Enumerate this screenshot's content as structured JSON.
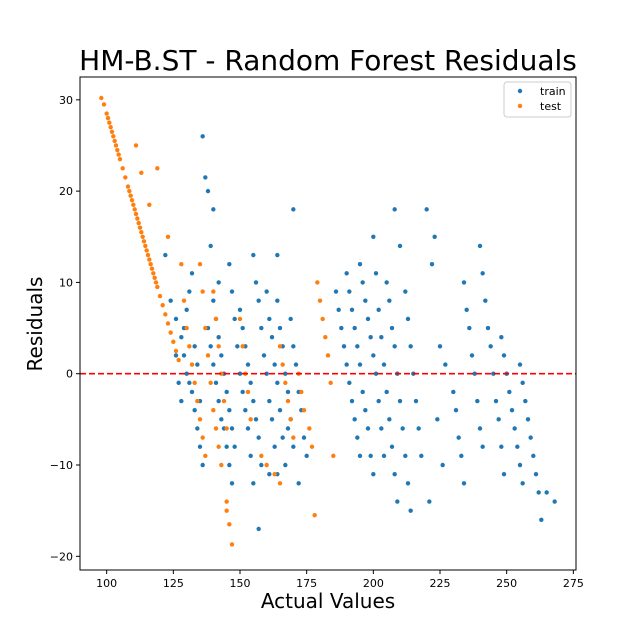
{
  "chart_data": {
    "type": "scatter",
    "title": "HM-B.ST - Random Forest Residuals",
    "xlabel": "Actual Values",
    "ylabel": "Residuals",
    "xlim": [
      90,
      276
    ],
    "ylim": [
      -21.5,
      32.5
    ],
    "xticks": [
      100,
      125,
      150,
      175,
      200,
      225,
      250,
      275
    ],
    "yticks": [
      -20,
      -10,
      0,
      10,
      20,
      30
    ],
    "grid": false,
    "legend_position": "top-right",
    "reference_line": {
      "y": 0,
      "color": "#ff0000",
      "style": "dashed"
    },
    "series": [
      {
        "name": "train",
        "color": "#1f77b4",
        "points": [
          [
            122,
            13
          ],
          [
            124,
            8
          ],
          [
            126,
            6
          ],
          [
            128,
            4
          ],
          [
            129,
            2
          ],
          [
            130,
            0
          ],
          [
            131,
            -1
          ],
          [
            132,
            -2
          ],
          [
            133,
            -4
          ],
          [
            134,
            -6
          ],
          [
            135,
            -8
          ],
          [
            136,
            -10
          ],
          [
            126,
            2
          ],
          [
            127,
            -1
          ],
          [
            128,
            -3
          ],
          [
            129,
            5
          ],
          [
            130,
            7
          ],
          [
            131,
            9
          ],
          [
            132,
            11
          ],
          [
            133,
            3
          ],
          [
            134,
            1
          ],
          [
            135,
            -3
          ],
          [
            138,
            5
          ],
          [
            139,
            3
          ],
          [
            140,
            1
          ],
          [
            141,
            -1
          ],
          [
            142,
            -3
          ],
          [
            143,
            -5
          ],
          [
            144,
            -6
          ],
          [
            145,
            -8
          ],
          [
            146,
            -10
          ],
          [
            147,
            -12
          ],
          [
            140,
            8
          ],
          [
            141,
            6
          ],
          [
            142,
            4
          ],
          [
            143,
            2
          ],
          [
            144,
            0
          ],
          [
            145,
            -2
          ],
          [
            146,
            -4
          ],
          [
            147,
            -6
          ],
          [
            148,
            -8
          ],
          [
            146,
            12
          ],
          [
            147,
            9
          ],
          [
            148,
            6
          ],
          [
            149,
            3
          ],
          [
            150,
            0
          ],
          [
            151,
            -2
          ],
          [
            152,
            -4
          ],
          [
            153,
            -6
          ],
          [
            154,
            -9
          ],
          [
            155,
            -12
          ],
          [
            150,
            7
          ],
          [
            151,
            5
          ],
          [
            152,
            3
          ],
          [
            153,
            1
          ],
          [
            154,
            -1
          ],
          [
            155,
            -3
          ],
          [
            156,
            -5
          ],
          [
            157,
            -7
          ],
          [
            158,
            -10
          ],
          [
            155,
            13
          ],
          [
            156,
            10
          ],
          [
            157,
            8
          ],
          [
            158,
            5
          ],
          [
            159,
            2
          ],
          [
            160,
            0
          ],
          [
            161,
            -3
          ],
          [
            162,
            -5
          ],
          [
            163,
            -8
          ],
          [
            164,
            -11
          ],
          [
            160,
            9
          ],
          [
            161,
            6
          ],
          [
            162,
            4
          ],
          [
            163,
            1
          ],
          [
            164,
            -1
          ],
          [
            165,
            -4
          ],
          [
            166,
            -7
          ],
          [
            167,
            -10
          ],
          [
            164,
            8
          ],
          [
            165,
            5
          ],
          [
            166,
            3
          ],
          [
            167,
            0
          ],
          [
            168,
            -2
          ],
          [
            169,
            -5
          ],
          [
            170,
            -8
          ],
          [
            169,
            6
          ],
          [
            170,
            3
          ],
          [
            171,
            1
          ],
          [
            172,
            -2
          ],
          [
            173,
            -4
          ],
          [
            174,
            -7
          ],
          [
            175,
            -9
          ],
          [
            136,
            26
          ],
          [
            137,
            21.5
          ],
          [
            138,
            20
          ],
          [
            140,
            18
          ],
          [
            139,
            14
          ],
          [
            142,
            10
          ],
          [
            157,
            -17
          ],
          [
            161,
            -11
          ],
          [
            170,
            18
          ],
          [
            164,
            13
          ],
          [
            168,
            -6
          ],
          [
            172,
            -12
          ],
          [
            186,
            9
          ],
          [
            187,
            7
          ],
          [
            188,
            5
          ],
          [
            189,
            3
          ],
          [
            190,
            1
          ],
          [
            191,
            -1
          ],
          [
            192,
            -3
          ],
          [
            193,
            -5
          ],
          [
            194,
            -7
          ],
          [
            195,
            -9
          ],
          [
            190,
            11
          ],
          [
            191,
            9
          ],
          [
            192,
            7
          ],
          [
            193,
            5
          ],
          [
            194,
            3
          ],
          [
            195,
            1
          ],
          [
            196,
            -2
          ],
          [
            197,
            -4
          ],
          [
            198,
            -6
          ],
          [
            199,
            -9
          ],
          [
            200,
            -11
          ],
          [
            195,
            12
          ],
          [
            196,
            10
          ],
          [
            197,
            8
          ],
          [
            198,
            6
          ],
          [
            199,
            4
          ],
          [
            200,
            2
          ],
          [
            201,
            0
          ],
          [
            202,
            -3
          ],
          [
            203,
            -6
          ],
          [
            204,
            -9
          ],
          [
            200,
            15
          ],
          [
            201,
            11
          ],
          [
            202,
            7
          ],
          [
            203,
            4
          ],
          [
            204,
            1
          ],
          [
            205,
            -2
          ],
          [
            206,
            -5
          ],
          [
            207,
            -8
          ],
          [
            208,
            -11
          ],
          [
            209,
            -14
          ],
          [
            205,
            10
          ],
          [
            206,
            8
          ],
          [
            207,
            5
          ],
          [
            208,
            3
          ],
          [
            209,
            0
          ],
          [
            210,
            -3
          ],
          [
            211,
            -6
          ],
          [
            212,
            -9
          ],
          [
            213,
            -12
          ],
          [
            214,
            -15
          ],
          [
            208,
            18
          ],
          [
            210,
            14
          ],
          [
            212,
            9
          ],
          [
            213,
            6
          ],
          [
            214,
            3
          ],
          [
            215,
            0
          ],
          [
            216,
            -3
          ],
          [
            217,
            -6
          ],
          [
            218,
            -9
          ],
          [
            220,
            18
          ],
          [
            221,
            -14
          ],
          [
            222,
            12
          ],
          [
            223,
            15
          ],
          [
            224,
            -5
          ],
          [
            225,
            3
          ],
          [
            226,
            -10
          ],
          [
            227,
            1
          ],
          [
            230,
            -2
          ],
          [
            231,
            -4
          ],
          [
            232,
            -7
          ],
          [
            233,
            -9
          ],
          [
            234,
            -12
          ],
          [
            234,
            10
          ],
          [
            235,
            7
          ],
          [
            236,
            5
          ],
          [
            237,
            2
          ],
          [
            238,
            0
          ],
          [
            239,
            -3
          ],
          [
            240,
            -6
          ],
          [
            241,
            -8
          ],
          [
            240,
            14
          ],
          [
            241,
            11
          ],
          [
            242,
            8
          ],
          [
            243,
            5
          ],
          [
            244,
            3
          ],
          [
            245,
            0
          ],
          [
            246,
            -3
          ],
          [
            247,
            -5
          ],
          [
            248,
            -8
          ],
          [
            249,
            -11
          ],
          [
            248,
            4
          ],
          [
            249,
            2
          ],
          [
            250,
            0
          ],
          [
            251,
            -2
          ],
          [
            252,
            -4
          ],
          [
            253,
            -6
          ],
          [
            254,
            -8
          ],
          [
            255,
            -10
          ],
          [
            256,
            -12
          ],
          [
            255,
            1
          ],
          [
            256,
            -1
          ],
          [
            257,
            -3
          ],
          [
            258,
            -5
          ],
          [
            259,
            -7
          ],
          [
            260,
            -9
          ],
          [
            261,
            -11
          ],
          [
            262,
            -13
          ],
          [
            263,
            -16
          ],
          [
            265,
            -13
          ],
          [
            268,
            -14
          ]
        ]
      },
      {
        "name": "test",
        "color": "#ff7f0e",
        "points": [
          [
            98,
            30.2
          ],
          [
            99,
            29.5
          ],
          [
            100,
            28.5
          ],
          [
            101,
            27.5
          ],
          [
            102,
            26.5
          ],
          [
            103,
            25.5
          ],
          [
            104,
            24.5
          ],
          [
            105,
            23.5
          ],
          [
            106,
            22.5
          ],
          [
            107,
            21.5
          ],
          [
            108,
            20.5
          ],
          [
            109,
            19.5
          ],
          [
            110,
            18.5
          ],
          [
            111,
            17.5
          ],
          [
            112,
            16.5
          ],
          [
            113,
            15.5
          ],
          [
            114,
            14.5
          ],
          [
            115,
            13.5
          ],
          [
            116,
            12.5
          ],
          [
            117,
            11.5
          ],
          [
            118,
            10.5
          ],
          [
            119,
            9.5
          ],
          [
            120,
            8.5
          ],
          [
            121,
            7.5
          ],
          [
            122,
            6.5
          ],
          [
            123,
            5.5
          ],
          [
            124,
            4.5
          ],
          [
            125,
            3.5
          ],
          [
            126,
            2.5
          ],
          [
            127,
            1.5
          ],
          [
            100.5,
            28
          ],
          [
            101.5,
            27
          ],
          [
            102.5,
            26
          ],
          [
            103.5,
            25
          ],
          [
            104.5,
            24
          ],
          [
            108.5,
            20
          ],
          [
            109.5,
            19
          ],
          [
            110.5,
            18
          ],
          [
            111.5,
            17
          ],
          [
            112.5,
            16
          ],
          [
            113.5,
            15
          ],
          [
            114.5,
            14
          ],
          [
            115.5,
            13
          ],
          [
            116.5,
            12
          ],
          [
            117.5,
            11
          ],
          [
            118.5,
            10
          ],
          [
            111,
            25
          ],
          [
            113,
            22
          ],
          [
            116,
            18.5
          ],
          [
            119,
            22.5
          ],
          [
            123,
            15
          ],
          [
            128,
            12
          ],
          [
            129,
            8
          ],
          [
            130,
            5
          ],
          [
            131,
            3
          ],
          [
            132,
            1
          ],
          [
            133,
            -1
          ],
          [
            134,
            -3
          ],
          [
            135,
            -5
          ],
          [
            136,
            -7
          ],
          [
            137,
            -9
          ],
          [
            135,
            12
          ],
          [
            136,
            9
          ],
          [
            137,
            5
          ],
          [
            138,
            2
          ],
          [
            139,
            -1
          ],
          [
            140,
            -4
          ],
          [
            141,
            -6
          ],
          [
            142,
            -8
          ],
          [
            143,
            -10
          ],
          [
            140,
            9
          ],
          [
            141,
            6
          ],
          [
            142,
            3
          ],
          [
            143,
            0
          ],
          [
            144,
            -3
          ],
          [
            145,
            -6
          ],
          [
            145,
            -14
          ],
          [
            146,
            -16.5
          ],
          [
            147,
            -18.7
          ],
          [
            145,
            -15
          ],
          [
            150,
            6
          ],
          [
            151,
            3
          ],
          [
            152,
            0
          ],
          [
            153,
            -2
          ],
          [
            154,
            -5
          ],
          [
            165,
            3
          ],
          [
            166,
            1
          ],
          [
            167,
            -1
          ],
          [
            168,
            -3
          ],
          [
            169,
            -5
          ],
          [
            170,
            -7
          ],
          [
            172,
            0
          ],
          [
            173,
            -2
          ],
          [
            174,
            -4
          ],
          [
            176,
            -6
          ],
          [
            177,
            -8
          ],
          [
            178,
            -15.5
          ],
          [
            179,
            10
          ],
          [
            180,
            8
          ],
          [
            181,
            6
          ],
          [
            182,
            4
          ],
          [
            183,
            2
          ],
          [
            184,
            -1
          ],
          [
            185,
            -9
          ],
          [
            158,
            -9
          ],
          [
            160,
            -10
          ],
          [
            163,
            -11
          ],
          [
            165,
            -12
          ]
        ]
      }
    ]
  }
}
